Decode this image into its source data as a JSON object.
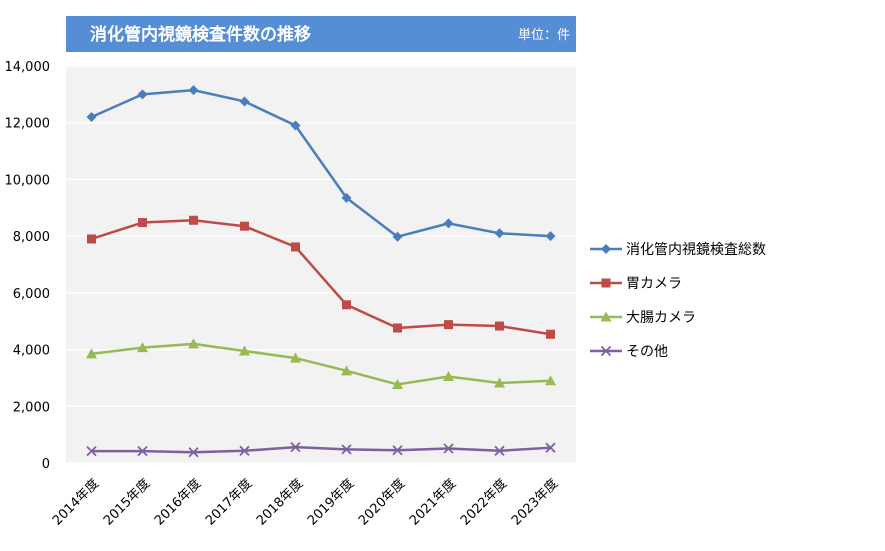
{
  "chart_data": {
    "type": "line",
    "title": "消化管内視鏡検査件数の推移",
    "unit": "単位：件",
    "categories": [
      "2014年度",
      "2015年度",
      "2016年度",
      "2017年度",
      "2018年度",
      "2019年度",
      "2020年度",
      "2021年度",
      "2022年度",
      "2023年度"
    ],
    "ylim": [
      0,
      14000
    ],
    "yticks": [
      0,
      2000,
      4000,
      6000,
      8000,
      10000,
      12000,
      14000
    ],
    "ytick_labels": [
      "0",
      "2,000",
      "4,000",
      "6,000",
      "8,000",
      "10,000",
      "12,000",
      "14,000"
    ],
    "grid": true,
    "legend_position": "right",
    "series": [
      {
        "name": "消化管内視鏡検査総数",
        "color": "#4A7EBB",
        "marker": "diamond",
        "values": [
          12200,
          13000,
          13150,
          12750,
          11900,
          9350,
          7980,
          8450,
          8100,
          8000
        ]
      },
      {
        "name": "胃カメラ",
        "color": "#BE4B48",
        "marker": "square",
        "values": [
          7900,
          8480,
          8560,
          8350,
          7620,
          5580,
          4760,
          4880,
          4830,
          4540
        ]
      },
      {
        "name": "大腸カメラ",
        "color": "#98B954",
        "marker": "triangle",
        "values": [
          3850,
          4070,
          4200,
          3950,
          3700,
          3250,
          2770,
          3050,
          2820,
          2900
        ]
      },
      {
        "name": "その他",
        "color": "#7D60A0",
        "marker": "x",
        "values": [
          420,
          420,
          380,
          430,
          560,
          480,
          450,
          510,
          430,
          540
        ]
      }
    ]
  }
}
